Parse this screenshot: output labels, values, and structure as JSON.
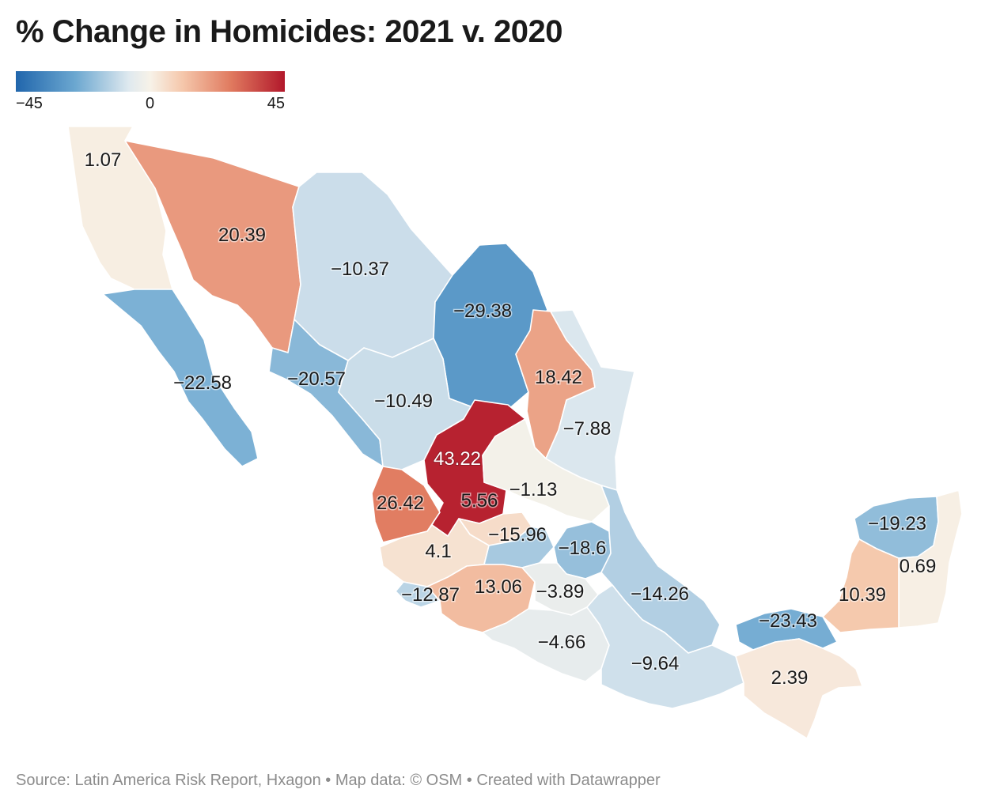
{
  "title": "% Change in Homicides: 2021 v. 2020",
  "legend": {
    "min_label": "−45",
    "mid_label": "0",
    "max_label": "45",
    "min": -45,
    "max": 45,
    "colors": [
      "#2166ac",
      "#6ba7d0",
      "#dfe9ef",
      "#f7f2e8",
      "#f5c7ab",
      "#e07a5f",
      "#b2182b"
    ]
  },
  "source": "Source: Latin America Risk Report, Hxagon • Map data: © OSM • Created with Datawrapper",
  "regions": [
    {
      "id": "baja-california",
      "value": 1.07,
      "label": "1.07"
    },
    {
      "id": "sonora",
      "value": 20.39,
      "label": "20.39"
    },
    {
      "id": "chihuahua",
      "value": -10.37,
      "label": "−10.37"
    },
    {
      "id": "coahuila",
      "value": -29.38,
      "label": "−29.38"
    },
    {
      "id": "baja-california-sur",
      "value": -22.58,
      "label": "−22.58"
    },
    {
      "id": "sinaloa",
      "value": -20.57,
      "label": "−20.57"
    },
    {
      "id": "durango",
      "value": -10.49,
      "label": "−10.49"
    },
    {
      "id": "nuevo-leon",
      "value": 18.42,
      "label": "18.42"
    },
    {
      "id": "tamaulipas",
      "value": -7.88,
      "label": "−7.88"
    },
    {
      "id": "zacatecas",
      "value": 43.22,
      "label": "43.22"
    },
    {
      "id": "nayarit",
      "value": 26.42,
      "label": "26.42"
    },
    {
      "id": "guanajuato",
      "value": 5.56,
      "label": "5.56"
    },
    {
      "id": "san-luis-potosi",
      "value": -1.13,
      "label": "−1.13"
    },
    {
      "id": "jalisco",
      "value": 4.1,
      "label": "4.1"
    },
    {
      "id": "queretaro",
      "value": -15.96,
      "label": "−15.96"
    },
    {
      "id": "hidalgo",
      "value": -18.6,
      "label": "−18.6"
    },
    {
      "id": "colima",
      "value": -12.87,
      "label": "−12.87"
    },
    {
      "id": "michoacan",
      "value": 13.06,
      "label": "13.06"
    },
    {
      "id": "mexico-state",
      "value": -3.89,
      "label": "−3.89"
    },
    {
      "id": "veracruz",
      "value": -14.26,
      "label": "−14.26"
    },
    {
      "id": "guerrero",
      "value": -4.66,
      "label": "−4.66"
    },
    {
      "id": "oaxaca",
      "value": -9.64,
      "label": "−9.64"
    },
    {
      "id": "tabasco",
      "value": -23.43,
      "label": "−23.43"
    },
    {
      "id": "chiapas",
      "value": 2.39,
      "label": "2.39"
    },
    {
      "id": "yucatan",
      "value": -19.23,
      "label": "−19.23"
    },
    {
      "id": "quintana-roo",
      "value": 0.69,
      "label": "0.69"
    },
    {
      "id": "campeche",
      "value": 10.39,
      "label": "10.39"
    }
  ]
}
